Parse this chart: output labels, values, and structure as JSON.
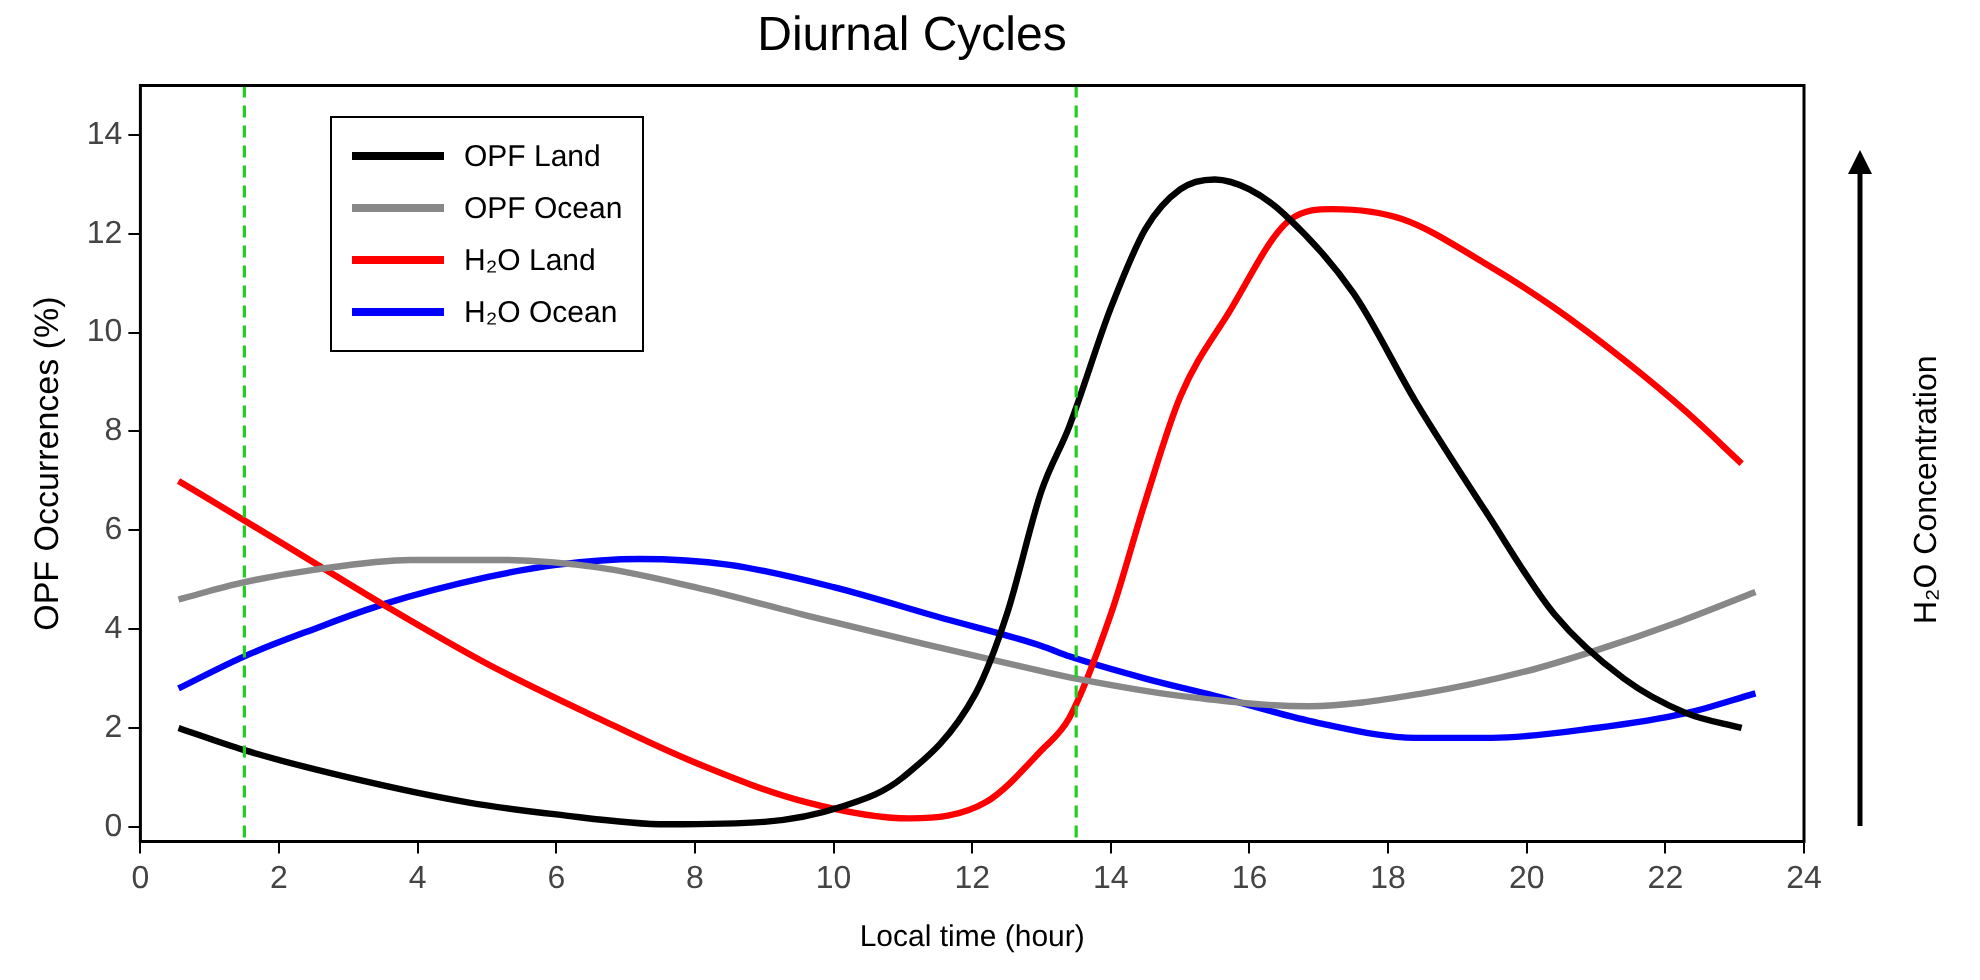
{
  "chart_data": {
    "type": "line",
    "title": "Diurnal Cycles",
    "xlabel": "Local time (hour)",
    "ylabel": "OPF Occurrences (%)",
    "y2label": "H₂O Concentration",
    "xlim": [
      0,
      24
    ],
    "xticks": [
      0,
      2,
      4,
      6,
      8,
      10,
      12,
      14,
      16,
      18,
      20,
      22,
      24
    ],
    "ylim": [
      -0.3,
      15
    ],
    "yticks": [
      0,
      2,
      4,
      6,
      8,
      10,
      12,
      14
    ],
    "legend": "top left",
    "marker": "none",
    "line_style": "solid",
    "ref_lines": [
      {
        "axis": "x",
        "value": 1.5,
        "color": "#22cc22",
        "line_style": "dashed"
      },
      {
        "axis": "x",
        "value": 13.5,
        "color": "#22cc22",
        "line_style": "dashed"
      }
    ],
    "series": [
      {
        "name": "OPF Land",
        "color": "#000000",
        "x": [
          0.55,
          1.5,
          3,
          4.7,
          6,
          7.6,
          9,
          10.1,
          11,
          12.05,
          12.5,
          13,
          13.4,
          14,
          14.5,
          15,
          15.5,
          16,
          16.5,
          17.5,
          18.4,
          19.4,
          20.4,
          21.4,
          22.3,
          23.1
        ],
        "values": [
          2.0,
          1.55,
          1.0,
          0.5,
          0.25,
          0.05,
          0.1,
          0.4,
          1.0,
          2.7,
          4.3,
          6.8,
          8.1,
          10.5,
          12.1,
          12.9,
          13.1,
          12.9,
          12.4,
          10.8,
          8.6,
          6.4,
          4.3,
          3.0,
          2.3,
          2.0
        ]
      },
      {
        "name": "OPF Ocean",
        "color": "#888888",
        "x": [
          0.55,
          1.5,
          2.5,
          3.9,
          5.2,
          6.6,
          8,
          9.6,
          11.3,
          13,
          13.5,
          15,
          16.85,
          18.5,
          20,
          21,
          22.2,
          23.3
        ],
        "values": [
          4.6,
          4.95,
          5.2,
          5.4,
          5.4,
          5.25,
          4.85,
          4.28,
          3.7,
          3.15,
          3.0,
          2.65,
          2.44,
          2.7,
          3.15,
          3.57,
          4.15,
          4.75
        ]
      },
      {
        "name": "H₂O Land",
        "color": "#ff0000",
        "x": [
          0.55,
          1.5,
          2.5,
          3.5,
          5,
          6.6,
          8,
          9.6,
          11.1,
          12.2,
          13,
          13.4,
          14,
          14.5,
          15,
          15.7,
          16.6,
          17.2,
          18.2,
          19.4,
          20.4,
          21.4,
          22.3,
          23.1
        ],
        "values": [
          7.0,
          6.2,
          5.35,
          4.5,
          3.3,
          2.2,
          1.3,
          0.5,
          0.17,
          0.5,
          1.55,
          2.2,
          4.3,
          6.6,
          8.7,
          10.4,
          12.3,
          12.5,
          12.3,
          11.4,
          10.5,
          9.45,
          8.4,
          7.35
        ]
      },
      {
        "name": "H₂O Ocean",
        "color": "#0000ff",
        "x": [
          0.55,
          1.5,
          2.5,
          3.5,
          5,
          6,
          7.2,
          8.5,
          10,
          11.5,
          13,
          13.4,
          14.5,
          15.5,
          17,
          18.4,
          19.5,
          21,
          22.3,
          23.3
        ],
        "values": [
          2.8,
          3.45,
          4.0,
          4.5,
          5.05,
          5.3,
          5.42,
          5.3,
          4.85,
          4.25,
          3.66,
          3.45,
          3.0,
          2.65,
          2.1,
          1.8,
          1.8,
          2.0,
          2.3,
          2.7
        ]
      }
    ]
  }
}
